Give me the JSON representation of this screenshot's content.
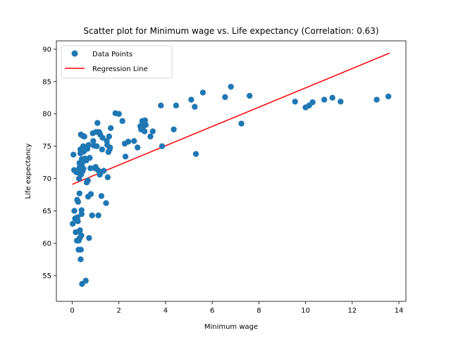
{
  "chart_data": {
    "type": "scatter",
    "title": "Scatter plot for Minimum wage vs. Life expectancy (Correlation: 0.63)",
    "xlabel": "Minimum wage",
    "ylabel": "Life expectancy",
    "xlim": [
      -0.68,
      14.3
    ],
    "ylim": [
      51.0,
      91.3
    ],
    "xticks": [
      0,
      2,
      4,
      6,
      8,
      10,
      12,
      14
    ],
    "yticks": [
      55,
      60,
      65,
      70,
      75,
      80,
      85,
      90
    ],
    "grid": false,
    "legend": {
      "placement": "top-left",
      "entries": [
        "Data Points",
        "Regression Line"
      ]
    },
    "series": [
      {
        "name": "Data Points",
        "kind": "scatter",
        "color": "#1f77b4",
        "points": [
          [
            0.02,
            63.0
          ],
          [
            0.05,
            73.7
          ],
          [
            0.08,
            71.3
          ],
          [
            0.09,
            65.0
          ],
          [
            0.12,
            63.8
          ],
          [
            0.15,
            61.7
          ],
          [
            0.17,
            71.0
          ],
          [
            0.2,
            60.4
          ],
          [
            0.21,
            66.7
          ],
          [
            0.22,
            64.0
          ],
          [
            0.24,
            63.4
          ],
          [
            0.25,
            66.4
          ],
          [
            0.26,
            70.9
          ],
          [
            0.27,
            59.0
          ],
          [
            0.28,
            60.4
          ],
          [
            0.29,
            61.8
          ],
          [
            0.29,
            70.0
          ],
          [
            0.3,
            71.6
          ],
          [
            0.31,
            72.4
          ],
          [
            0.31,
            67.7
          ],
          [
            0.32,
            60.8
          ],
          [
            0.33,
            62.0
          ],
          [
            0.34,
            71.9
          ],
          [
            0.35,
            73.9
          ],
          [
            0.35,
            74.5
          ],
          [
            0.36,
            57.5
          ],
          [
            0.37,
            76.8
          ],
          [
            0.37,
            59.0
          ],
          [
            0.38,
            70.6
          ],
          [
            0.39,
            61.2
          ],
          [
            0.4,
            64.5
          ],
          [
            0.4,
            65.1
          ],
          [
            0.41,
            73.0
          ],
          [
            0.41,
            72.0
          ],
          [
            0.42,
            53.7
          ],
          [
            0.42,
            74.1
          ],
          [
            0.43,
            72.5
          ],
          [
            0.44,
            71.1
          ],
          [
            0.45,
            76.6
          ],
          [
            0.46,
            74.6
          ],
          [
            0.47,
            75.0
          ],
          [
            0.48,
            71.5
          ],
          [
            0.5,
            74.2
          ],
          [
            0.52,
            76.5
          ],
          [
            0.55,
            73.1
          ],
          [
            0.58,
            54.2
          ],
          [
            0.6,
            72.8
          ],
          [
            0.62,
            69.4
          ],
          [
            0.65,
            74.6
          ],
          [
            0.67,
            69.7
          ],
          [
            0.68,
            67.2
          ],
          [
            0.7,
            75.2
          ],
          [
            0.72,
            60.8
          ],
          [
            0.75,
            73.2
          ],
          [
            0.78,
            71.6
          ],
          [
            0.8,
            67.6
          ],
          [
            0.85,
            64.3
          ],
          [
            0.88,
            77.0
          ],
          [
            0.9,
            75.8
          ],
          [
            0.93,
            75.1
          ],
          [
            0.97,
            71.6
          ],
          [
            1.0,
            71.8
          ],
          [
            1.02,
            77.2
          ],
          [
            1.05,
            75.0
          ],
          [
            1.08,
            78.6
          ],
          [
            1.1,
            71.3
          ],
          [
            1.12,
            64.3
          ],
          [
            1.15,
            77.2
          ],
          [
            1.18,
            70.6
          ],
          [
            1.2,
            76.8
          ],
          [
            1.23,
            71.0
          ],
          [
            1.25,
            67.3
          ],
          [
            1.28,
            74.5
          ],
          [
            1.3,
            76.3
          ],
          [
            1.35,
            71.2
          ],
          [
            1.45,
            66.2
          ],
          [
            1.48,
            75.8
          ],
          [
            1.5,
            75.2
          ],
          [
            1.52,
            70.2
          ],
          [
            1.55,
            74.1
          ],
          [
            1.58,
            76.5
          ],
          [
            1.6,
            74.5
          ],
          [
            1.62,
            74.8
          ],
          [
            1.65,
            77.8
          ],
          [
            1.85,
            80.1
          ],
          [
            2.0,
            80.0
          ],
          [
            2.15,
            78.9
          ],
          [
            2.25,
            75.4
          ],
          [
            2.28,
            73.4
          ],
          [
            2.4,
            75.7
          ],
          [
            2.65,
            75.8
          ],
          [
            2.8,
            74.8
          ],
          [
            2.92,
            78.1
          ],
          [
            2.95,
            77.6
          ],
          [
            3.0,
            78.9
          ],
          [
            3.05,
            78.1
          ],
          [
            3.1,
            77.3
          ],
          [
            3.12,
            79.0
          ],
          [
            3.15,
            78.3
          ],
          [
            3.35,
            76.5
          ],
          [
            3.45,
            77.3
          ],
          [
            3.8,
            81.3
          ],
          [
            3.85,
            75.0
          ],
          [
            4.35,
            77.6
          ],
          [
            4.45,
            81.3
          ],
          [
            5.1,
            82.2
          ],
          [
            5.25,
            81.1
          ],
          [
            5.3,
            73.8
          ],
          [
            5.6,
            83.3
          ],
          [
            6.55,
            82.6
          ],
          [
            6.8,
            84.2
          ],
          [
            7.25,
            78.5
          ],
          [
            7.6,
            82.8
          ],
          [
            9.55,
            81.9
          ],
          [
            10.0,
            81.0
          ],
          [
            10.15,
            81.3
          ],
          [
            10.3,
            81.8
          ],
          [
            10.8,
            82.2
          ],
          [
            11.15,
            82.5
          ],
          [
            11.5,
            81.9
          ],
          [
            13.05,
            82.2
          ],
          [
            13.55,
            82.7
          ]
        ]
      },
      {
        "name": "Regression Line",
        "kind": "line",
        "color": "#ff0000",
        "x": [
          0.0,
          13.6
        ],
        "y": [
          69.1,
          89.4
        ]
      }
    ]
  }
}
